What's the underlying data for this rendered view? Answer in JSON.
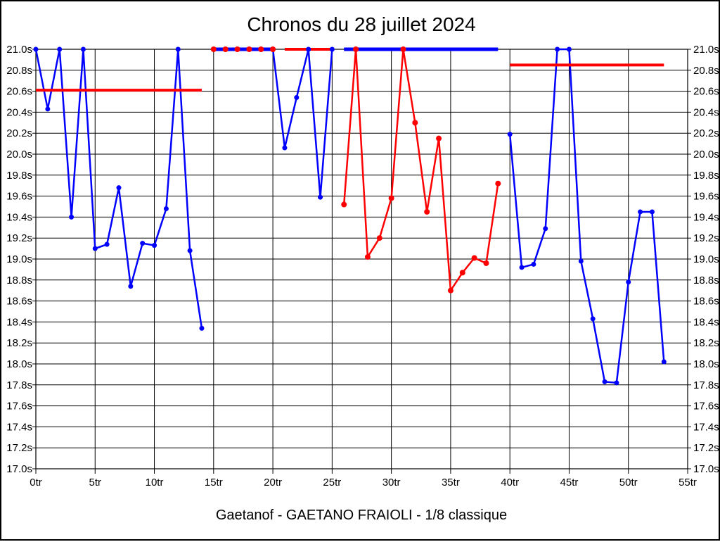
{
  "title": "Chronos du 28 juillet 2024",
  "footer": "Gaetanof - GAETANO FRAIOLI - 1/8 classique",
  "colors": {
    "series_blue": "#0000ff",
    "series_red": "#ff0000",
    "grid": "#000000",
    "background": "#ffffff"
  },
  "chart_data": {
    "type": "line",
    "title": "Chronos du 28 juillet 2024",
    "subtitle": "Gaetanof - GAETANO FRAIOLI - 1/8 classique",
    "x_unit": "tr",
    "y_unit": "s",
    "xlim": [
      0,
      55
    ],
    "ylim": [
      17.0,
      21.0
    ],
    "grid": true,
    "legend": "none",
    "x_ticks": [
      {
        "value": 0,
        "label": "0tr"
      },
      {
        "value": 5,
        "label": "5tr"
      },
      {
        "value": 10,
        "label": "10tr"
      },
      {
        "value": 15,
        "label": "15tr"
      },
      {
        "value": 20,
        "label": "20tr"
      },
      {
        "value": 25,
        "label": "25tr"
      },
      {
        "value": 30,
        "label": "30tr"
      },
      {
        "value": 35,
        "label": "35tr"
      },
      {
        "value": 40,
        "label": "40tr"
      },
      {
        "value": 45,
        "label": "45tr"
      },
      {
        "value": 50,
        "label": "50tr"
      },
      {
        "value": 55,
        "label": "55tr"
      }
    ],
    "y_ticks": [
      {
        "value": 21.0,
        "label": "21.0s"
      },
      {
        "value": 20.8,
        "label": "20.8s"
      },
      {
        "value": 20.6,
        "label": "20.6s"
      },
      {
        "value": 20.4,
        "label": "20.4s"
      },
      {
        "value": 20.2,
        "label": "20.2s"
      },
      {
        "value": 20.0,
        "label": "20.0s"
      },
      {
        "value": 19.8,
        "label": "19.8s"
      },
      {
        "value": 19.6,
        "label": "19.6s"
      },
      {
        "value": 19.4,
        "label": "19.4s"
      },
      {
        "value": 19.2,
        "label": "19.2s"
      },
      {
        "value": 19.0,
        "label": "19.0s"
      },
      {
        "value": 18.8,
        "label": "18.8s"
      },
      {
        "value": 18.6,
        "label": "18.6s"
      },
      {
        "value": 18.4,
        "label": "18.4s"
      },
      {
        "value": 18.2,
        "label": "18.2s"
      },
      {
        "value": 18.0,
        "label": "18.0s"
      },
      {
        "value": 17.8,
        "label": "17.8s"
      },
      {
        "value": 17.6,
        "label": "17.6s"
      },
      {
        "value": 17.4,
        "label": "17.4s"
      },
      {
        "value": 17.2,
        "label": "17.2s"
      },
      {
        "value": 17.0,
        "label": "17.0s"
      }
    ],
    "series": [
      {
        "name": "run-1-blue-laps",
        "color": "#0000ff",
        "style": "line-markers",
        "x": [
          0,
          1,
          2,
          3,
          4,
          5,
          6,
          7,
          8,
          9,
          10,
          11,
          12,
          13,
          14
        ],
        "y": [
          21.0,
          20.43,
          21.0,
          19.4,
          21.0,
          19.1,
          19.14,
          19.68,
          18.74,
          19.15,
          19.13,
          19.48,
          21.0,
          19.08,
          18.34
        ]
      },
      {
        "name": "run-1-average-line",
        "color": "#ff0000",
        "style": "refline",
        "y_value": 20.61,
        "x_start": 0,
        "x_end": 14
      },
      {
        "name": "run-2-average-line",
        "color": "#ff0000",
        "style": "refline",
        "y_value": 21.0,
        "x_start": 21,
        "x_end": 25
      },
      {
        "name": "run-2-blue-laps",
        "color": "#0000ff",
        "style": "line-markers",
        "x": [
          15,
          16,
          17,
          18,
          19,
          20,
          21,
          22,
          23,
          24,
          25
        ],
        "y": [
          21.0,
          21.0,
          21.0,
          21.0,
          21.0,
          21.0,
          20.06,
          20.54,
          21.0,
          19.59,
          21.0
        ]
      },
      {
        "name": "run-2-capped-segment",
        "color": "#0000ff",
        "style": "thick-line",
        "x": [
          15,
          20
        ],
        "y": [
          21.0,
          21.0
        ]
      },
      {
        "name": "run-2-red-capped-markers",
        "color": "#ff0000",
        "style": "markers",
        "x": [
          15,
          16,
          17,
          18,
          19,
          20
        ],
        "y": [
          21.0,
          21.0,
          21.0,
          21.0,
          21.0,
          21.0
        ]
      },
      {
        "name": "run-3-blue-capped-segment",
        "color": "#0000ff",
        "style": "thick-line",
        "x": [
          26,
          39
        ],
        "y": [
          21.0,
          21.0
        ]
      },
      {
        "name": "run-3-red-laps",
        "color": "#ff0000",
        "style": "line-markers",
        "x": [
          26,
          27,
          28,
          29,
          30,
          31,
          32,
          33,
          34,
          35,
          36,
          37,
          38,
          39
        ],
        "y": [
          19.52,
          21.0,
          19.02,
          19.2,
          19.58,
          21.0,
          20.3,
          19.45,
          20.15,
          18.7,
          18.87,
          19.01,
          18.96,
          19.72
        ]
      },
      {
        "name": "run-4-blue-laps",
        "color": "#0000ff",
        "style": "line-markers",
        "x": [
          40,
          41,
          42,
          43,
          44,
          45,
          46,
          47,
          48,
          49,
          50,
          51,
          52,
          53
        ],
        "y": [
          20.19,
          18.92,
          18.95,
          19.29,
          21.0,
          21.0,
          18.98,
          18.43,
          17.83,
          17.82,
          18.78,
          19.45,
          19.45,
          18.02
        ]
      },
      {
        "name": "run-4-average-line",
        "color": "#ff0000",
        "style": "refline",
        "y_value": 20.85,
        "x_start": 40,
        "x_end": 53
      }
    ]
  }
}
